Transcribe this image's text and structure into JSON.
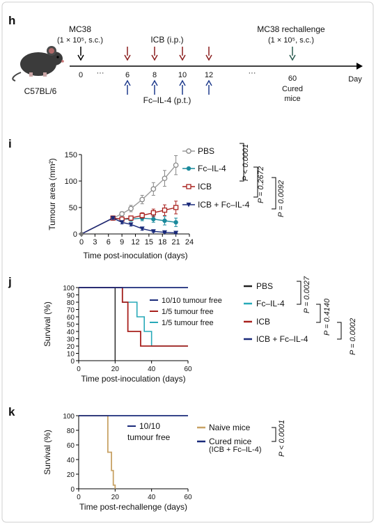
{
  "colors": {
    "pbs_line": "#9a9a9a",
    "fcil4": "#1b8a9c",
    "icb": "#a8201d",
    "combo": "#1a2a7a",
    "icb_arrow": "#8a1e1e",
    "fc_arrow": "#1f3b8c",
    "rechallenge_arrow": "#2a5a4f",
    "surv_pbs": "#222222",
    "surv_fc": "#27a9b8",
    "surv_icb": "#a8201d",
    "surv_combo": "#1a2a7a",
    "naive": "#c8a265",
    "cured": "#1a2a7a"
  },
  "panel_h": {
    "letter": "h",
    "mouse_label": "C57BL/6",
    "mc38_label": "MC38",
    "mc38_dose": "(1 × 10⁵, s.c.)",
    "icb_label": "ICB (i.p.)",
    "fc_label": "Fc–IL-4 (p.t.)",
    "rechallenge_label": "MC38 rechallenge",
    "rechallenge_dose": "(1 × 10⁵, s.c.)",
    "day_label": "Day",
    "ellipsis": "···",
    "ticks": [
      "0",
      "6",
      "8",
      "10",
      "12",
      "60"
    ],
    "cured_label_1": "Cured",
    "cured_label_2": "mice"
  },
  "panel_i": {
    "letter": "i",
    "stat_p1": "P < 0.0001",
    "stat_p2": "P = 0.2672",
    "stat_p3": "P = 0.0092"
  },
  "panel_j": {
    "letter": "j",
    "free_labels": [
      "10/10 tumour free",
      "1/5 tumour free",
      "1/5 tumour free"
    ],
    "stat_p1": "P = 0.0027",
    "stat_p2": "P = 0.4140",
    "stat_p3": "P = 0.0002"
  },
  "panel_k": {
    "letter": "k",
    "free_label_1": "10/10",
    "free_label_2": "tumour free",
    "cured_sub": "(ICB + Fc–IL-4)",
    "stat_p": "P < 0.0001"
  },
  "chart_data": [
    {
      "type": "line",
      "xlabel": "Time post-inoculation (days)",
      "ylabel": "Tumour area (mm²)",
      "xlim": [
        0,
        24
      ],
      "ylim": [
        0,
        150
      ],
      "xticks": [
        0,
        3,
        6,
        9,
        12,
        15,
        18,
        21,
        24
      ],
      "yticks": [
        0,
        50,
        100,
        150
      ],
      "legend": "top-right",
      "series": [
        {
          "name": "PBS",
          "x": [
            0,
            7,
            9,
            11,
            13.5,
            16,
            18.5,
            21
          ],
          "y": [
            0,
            30,
            38,
            48,
            65,
            85,
            105,
            130
          ],
          "err": [
            0,
            2,
            4,
            6,
            8,
            12,
            15,
            18
          ]
        },
        {
          "name": "Fc–IL-4",
          "x": [
            0,
            7,
            9,
            11,
            13.5,
            16,
            18.5,
            21
          ],
          "y": [
            0,
            30,
            28,
            28,
            30,
            28,
            25,
            22
          ],
          "err": [
            0,
            2,
            3,
            4,
            5,
            6,
            8,
            8
          ]
        },
        {
          "name": "ICB",
          "x": [
            0,
            7,
            9,
            11,
            13.5,
            16,
            18.5,
            21
          ],
          "y": [
            0,
            30,
            28,
            30,
            35,
            40,
            45,
            50
          ],
          "err": [
            0,
            2,
            3,
            4,
            5,
            7,
            10,
            12
          ]
        },
        {
          "name": "ICB + Fc–IL-4",
          "x": [
            0,
            7,
            9,
            11,
            13.5,
            16,
            18.5,
            21
          ],
          "y": [
            0,
            30,
            22,
            18,
            10,
            5,
            3,
            2
          ],
          "err": [
            0,
            2,
            3,
            3,
            3,
            2,
            1,
            1
          ]
        }
      ]
    },
    {
      "type": "line",
      "xlabel": "Time post-inoculation (days)",
      "ylabel": "Survival (%)",
      "xlim": [
        0,
        60
      ],
      "ylim": [
        0,
        100
      ],
      "xticks": [
        0,
        20,
        40,
        60
      ],
      "yticks": [
        0,
        10,
        20,
        30,
        40,
        50,
        60,
        70,
        80,
        90,
        100
      ],
      "legend": "right",
      "series": [
        {
          "name": "PBS",
          "x": [
            0,
            20,
            20
          ],
          "y": [
            100,
            100,
            0
          ]
        },
        {
          "name": "Fc–IL-4",
          "x": [
            0,
            24,
            24,
            32,
            32,
            36,
            36,
            40,
            40,
            60
          ],
          "y": [
            100,
            100,
            80,
            80,
            60,
            60,
            40,
            40,
            20,
            20
          ]
        },
        {
          "name": "ICB",
          "x": [
            0,
            24,
            24,
            27,
            27,
            32,
            32,
            34,
            34,
            60
          ],
          "y": [
            100,
            100,
            80,
            80,
            40,
            40,
            40,
            40,
            20,
            20
          ]
        },
        {
          "name": "ICB + Fc–IL-4",
          "x": [
            0,
            60
          ],
          "y": [
            100,
            100
          ]
        }
      ]
    },
    {
      "type": "line",
      "xlabel": "Time post-rechallenge (days)",
      "ylabel": "Survival (%)",
      "xlim": [
        0,
        60
      ],
      "ylim": [
        0,
        100
      ],
      "xticks": [
        0,
        20,
        40,
        60
      ],
      "yticks": [
        0,
        20,
        40,
        60,
        80,
        100
      ],
      "legend": "right",
      "series": [
        {
          "name": "Naive mice",
          "x": [
            0,
            16,
            16,
            18,
            18,
            19,
            19,
            20,
            20
          ],
          "y": [
            100,
            100,
            50,
            50,
            25,
            25,
            5,
            5,
            0
          ]
        },
        {
          "name": "Cured mice",
          "x": [
            0,
            60
          ],
          "y": [
            100,
            100
          ]
        }
      ]
    }
  ]
}
